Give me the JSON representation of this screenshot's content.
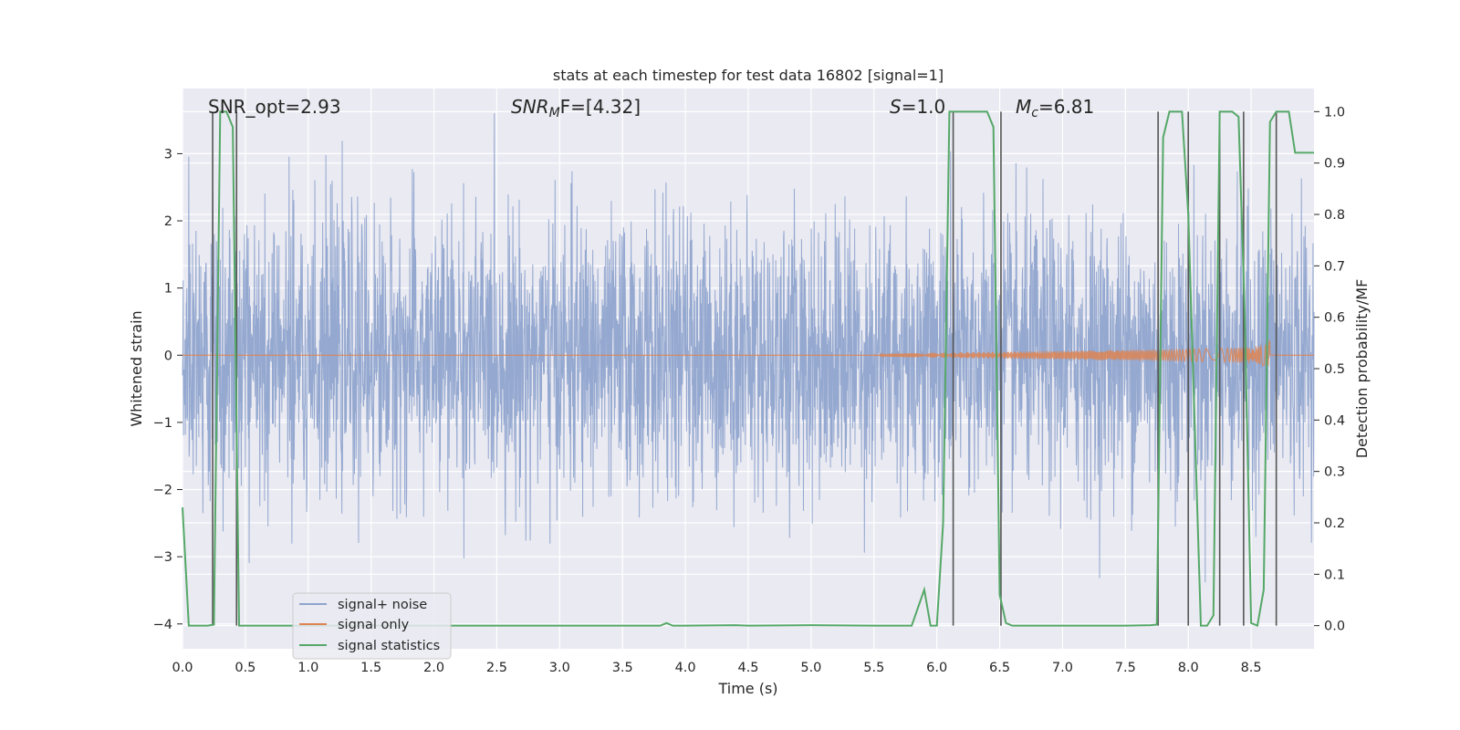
{
  "chart_data": {
    "type": "line",
    "title": "stats at each timestep for test data 16802 [signal=1]",
    "xlabel": "Time (s)",
    "ylabel_left": "Whitened strain",
    "ylabel_right": "Detection probability/MF",
    "xlim": [
      0.0,
      9.0
    ],
    "ylim_left": [
      -4.37,
      3.97
    ],
    "ylim_right": [
      -0.045,
      1.045
    ],
    "x_ticks": [
      0.0,
      0.5,
      1.0,
      1.5,
      2.0,
      2.5,
      3.0,
      3.5,
      4.0,
      4.5,
      5.0,
      5.5,
      6.0,
      6.5,
      7.0,
      7.5,
      8.0,
      8.5
    ],
    "x_tick_labels": [
      "0.0",
      "0.5",
      "1.0",
      "1.5",
      "2.0",
      "2.5",
      "3.0",
      "3.5",
      "4.0",
      "4.5",
      "5.0",
      "5.5",
      "6.0",
      "6.5",
      "7.0",
      "7.5",
      "8.0",
      "8.5"
    ],
    "y_ticks_left": [
      -4,
      -3,
      -2,
      -1,
      0,
      1,
      2,
      3
    ],
    "y_tick_labels_left": [
      "−4",
      "−3",
      "−2",
      "−1",
      "0",
      "1",
      "2",
      "3"
    ],
    "y_ticks_right": [
      0.0,
      0.1,
      0.2,
      0.3,
      0.4,
      0.5,
      0.6,
      0.7,
      0.8,
      0.9,
      1.0
    ],
    "y_tick_labels_right": [
      "0.0",
      "0.1",
      "0.2",
      "0.3",
      "0.4",
      "0.5",
      "0.6",
      "0.7",
      "0.8",
      "0.9",
      "1.0"
    ],
    "annotations": {
      "snr_opt": "SNR_opt=2.93",
      "snr_mf_main": "SNR",
      "snr_mf_sub": "M",
      "snr_mf_tail": "F=[4.32]",
      "s_main": "S",
      "s_value": "=1.0",
      "mc_main": "M",
      "mc_sub": "c",
      "mc_value": "=6.81"
    },
    "series": [
      {
        "name": "signal+ noise",
        "color": "#8fa4cd",
        "axis": "left",
        "description_values": "whitened noisy strain, roughly -3.9 to 3.6, envelope ~±1.6"
      },
      {
        "name": "signal only",
        "color": "#dd8452",
        "axis": "left",
        "chirp_start": 5.5,
        "chirp_end": 8.65,
        "chirp_peak_amplitude": 0.28
      },
      {
        "name": "signal statistics",
        "color": "#55a868",
        "axis": "right",
        "x": [
          0.0,
          0.05,
          0.1,
          0.15,
          0.2,
          0.25,
          0.3,
          0.35,
          0.4,
          0.45,
          0.5,
          0.55,
          0.6,
          0.65,
          0.7,
          0.75,
          0.8,
          0.85,
          0.9,
          0.95,
          1.0,
          1.5,
          2.0,
          2.5,
          3.0,
          3.5,
          3.8,
          3.85,
          3.9,
          4.0,
          4.4,
          4.5,
          5.0,
          5.5,
          5.75,
          5.8,
          5.85,
          5.9,
          5.95,
          6.0,
          6.05,
          6.1,
          6.15,
          6.2,
          6.3,
          6.35,
          6.4,
          6.45,
          6.5,
          6.55,
          6.6,
          6.65,
          6.7,
          6.75,
          6.8,
          6.9,
          7.0,
          7.5,
          7.7,
          7.75,
          7.8,
          7.85,
          7.9,
          7.95,
          8.0,
          8.05,
          8.1,
          8.15,
          8.2,
          8.25,
          8.3,
          8.35,
          8.4,
          8.45,
          8.5,
          8.55,
          8.6,
          8.65,
          8.7,
          8.75,
          8.8,
          8.85,
          8.9,
          8.95,
          9.0
        ],
        "values": [
          0.23,
          0.0,
          0.0,
          0.0,
          0.0,
          0.002,
          1.0,
          1.0,
          0.97,
          0.0,
          0.0,
          0.0,
          0.0,
          0.0,
          0.0,
          0.0,
          0.0,
          0.0,
          0.0,
          0.0,
          0.0,
          0.0,
          0.0,
          0.0,
          0.0,
          0.0,
          0.0,
          0.005,
          0.0,
          0.0,
          0.001,
          0.0,
          0.001,
          0.0,
          0.0,
          0.0,
          0.035,
          0.07,
          0.0,
          0.0,
          0.2,
          1.0,
          1.0,
          1.0,
          1.0,
          1.0,
          1.0,
          0.97,
          0.06,
          0.005,
          0.0,
          0.0,
          0.0,
          0.0,
          0.0,
          0.0,
          0.0,
          0.0,
          0.001,
          0.002,
          0.95,
          1.0,
          1.0,
          1.0,
          0.8,
          0.4,
          0.0,
          0.0,
          0.02,
          1.0,
          1.0,
          1.0,
          0.99,
          0.6,
          0.005,
          0.0,
          0.07,
          0.98,
          1.0,
          1.0,
          1.0,
          0.92,
          0.92,
          0.92,
          0.92
        ]
      }
    ],
    "vertical_markers": [
      0.24,
      0.43,
      6.13,
      6.51,
      7.76,
      8.0,
      8.25,
      8.44,
      8.7
    ],
    "vertical_marker_color": "#555555",
    "legend": {
      "position": "lower-left",
      "entries": [
        {
          "label": "signal+ noise",
          "color": "#8fa4cd"
        },
        {
          "label": "signal only",
          "color": "#dd8452"
        },
        {
          "label": "signal statistics",
          "color": "#55a868"
        }
      ]
    },
    "grid": true
  }
}
